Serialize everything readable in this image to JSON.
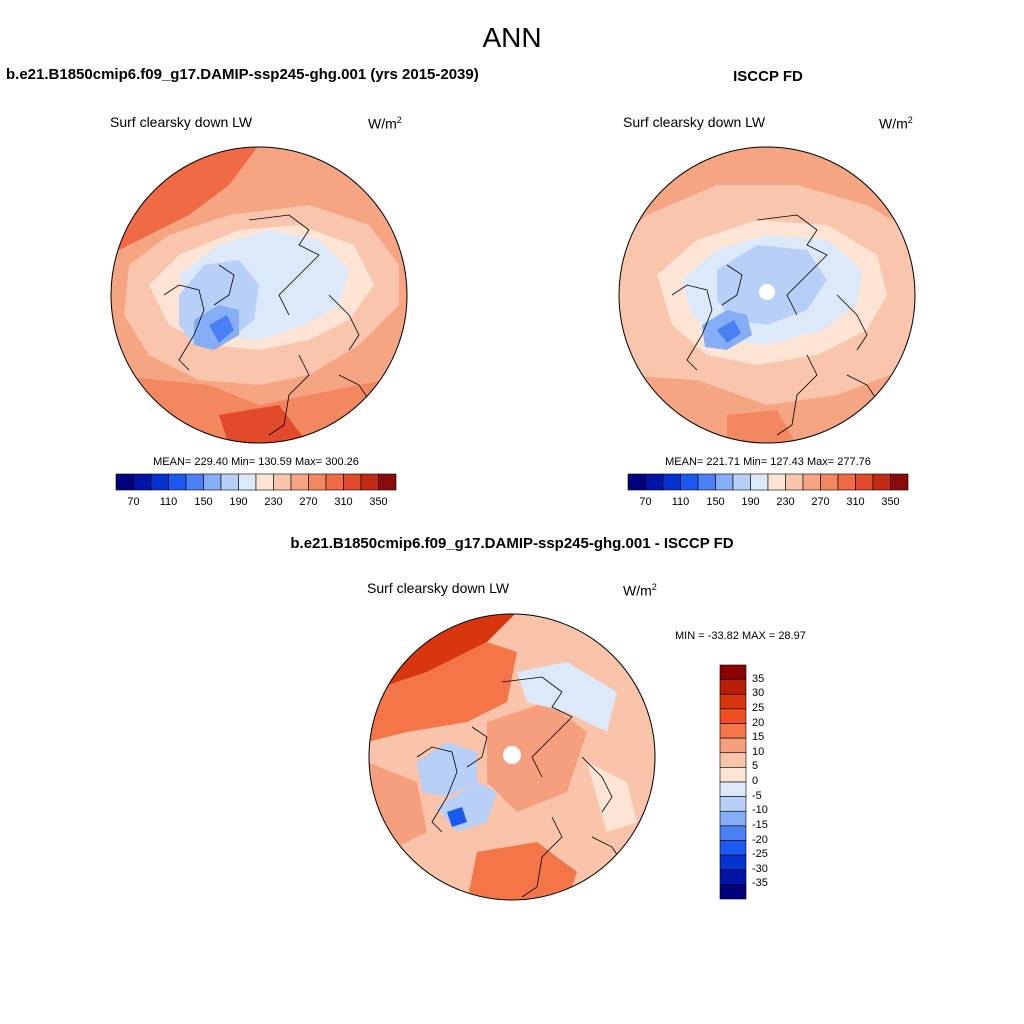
{
  "page": {
    "season": "ANN"
  },
  "panels": [
    {
      "id": "model",
      "title": "b.e21.B1850cmip6.f09_g17.DAMIP-ssp245-ghg.001 (yrs 2015-2039)",
      "variable": "Surf clearsky down LW",
      "units_base": "W/m",
      "units_exp": "2",
      "stats": "MEAN= 229.40  Min= 130.59  Max= 300.26",
      "polar_hole": false
    },
    {
      "id": "obs",
      "title": "ISCCP FD",
      "variable": "Surf clearsky down LW",
      "units_base": "W/m",
      "units_exp": "2",
      "stats": "MEAN= 221.71  Min= 127.43  Max= 277.76",
      "polar_hole": true
    },
    {
      "id": "diff",
      "title": "b.e21.B1850cmip6.f09_g17.DAMIP-ssp245-ghg.001 - ISCCP FD",
      "variable": "Surf clearsky down LW",
      "units_base": "W/m",
      "units_exp": "2",
      "stats": "MIN = -33.82 MAX =  28.97",
      "polar_hole": true
    }
  ],
  "colorbar_abs": {
    "orientation": "horizontal",
    "colors": [
      "#00007f",
      "#0015a8",
      "#0533d2",
      "#1b5af0",
      "#4a80f3",
      "#86aef6",
      "#b8d0f8",
      "#dce9fa",
      "#fde4d5",
      "#f9c5ad",
      "#f6a583",
      "#f38860",
      "#f06b45",
      "#e34a2b",
      "#c22c17",
      "#8b0a0a"
    ],
    "labels": [
      "70",
      "110",
      "150",
      "190",
      "230",
      "270",
      "310",
      "350"
    ]
  },
  "colorbar_diff": {
    "orientation": "vertical",
    "colors": [
      "#8b0000",
      "#b81d07",
      "#d8360e",
      "#f04d23",
      "#f47648",
      "#f69f7f",
      "#f9c4a9",
      "#fde4d5",
      "#dce9fa",
      "#b8d0f8",
      "#86aef6",
      "#4a80f3",
      "#1b5af0",
      "#0533d2",
      "#0015a8",
      "#00007f"
    ],
    "labels": [
      "35",
      "30",
      "25",
      "20",
      "15",
      "10",
      "5",
      "0",
      "-5",
      "-10",
      "-15",
      "-20",
      "-25",
      "-30",
      "-35"
    ]
  },
  "chart_data": [
    {
      "type": "heatmap",
      "title": "Surf clearsky down LW",
      "stats": {
        "mean": 229.4,
        "min": 130.59,
        "max": 300.26
      },
      "colorbar_labels": [
        70,
        110,
        150,
        190,
        230,
        270,
        310,
        350
      ]
    },
    {
      "type": "heatmap",
      "title": "Surf clearsky down LW",
      "stats": {
        "mean": 221.71,
        "min": 127.43,
        "max": 277.76
      },
      "colorbar_labels": [
        70,
        110,
        150,
        190,
        230,
        270,
        310,
        350
      ]
    },
    {
      "type": "heatmap",
      "title": "Surf clearsky down LW",
      "stats": {
        "min": -33.82,
        "max": 28.97
      },
      "colorbar_labels": [
        35,
        30,
        25,
        20,
        15,
        10,
        5,
        0,
        -5,
        -10,
        -15,
        -20,
        -25,
        -30,
        -35
      ]
    }
  ]
}
